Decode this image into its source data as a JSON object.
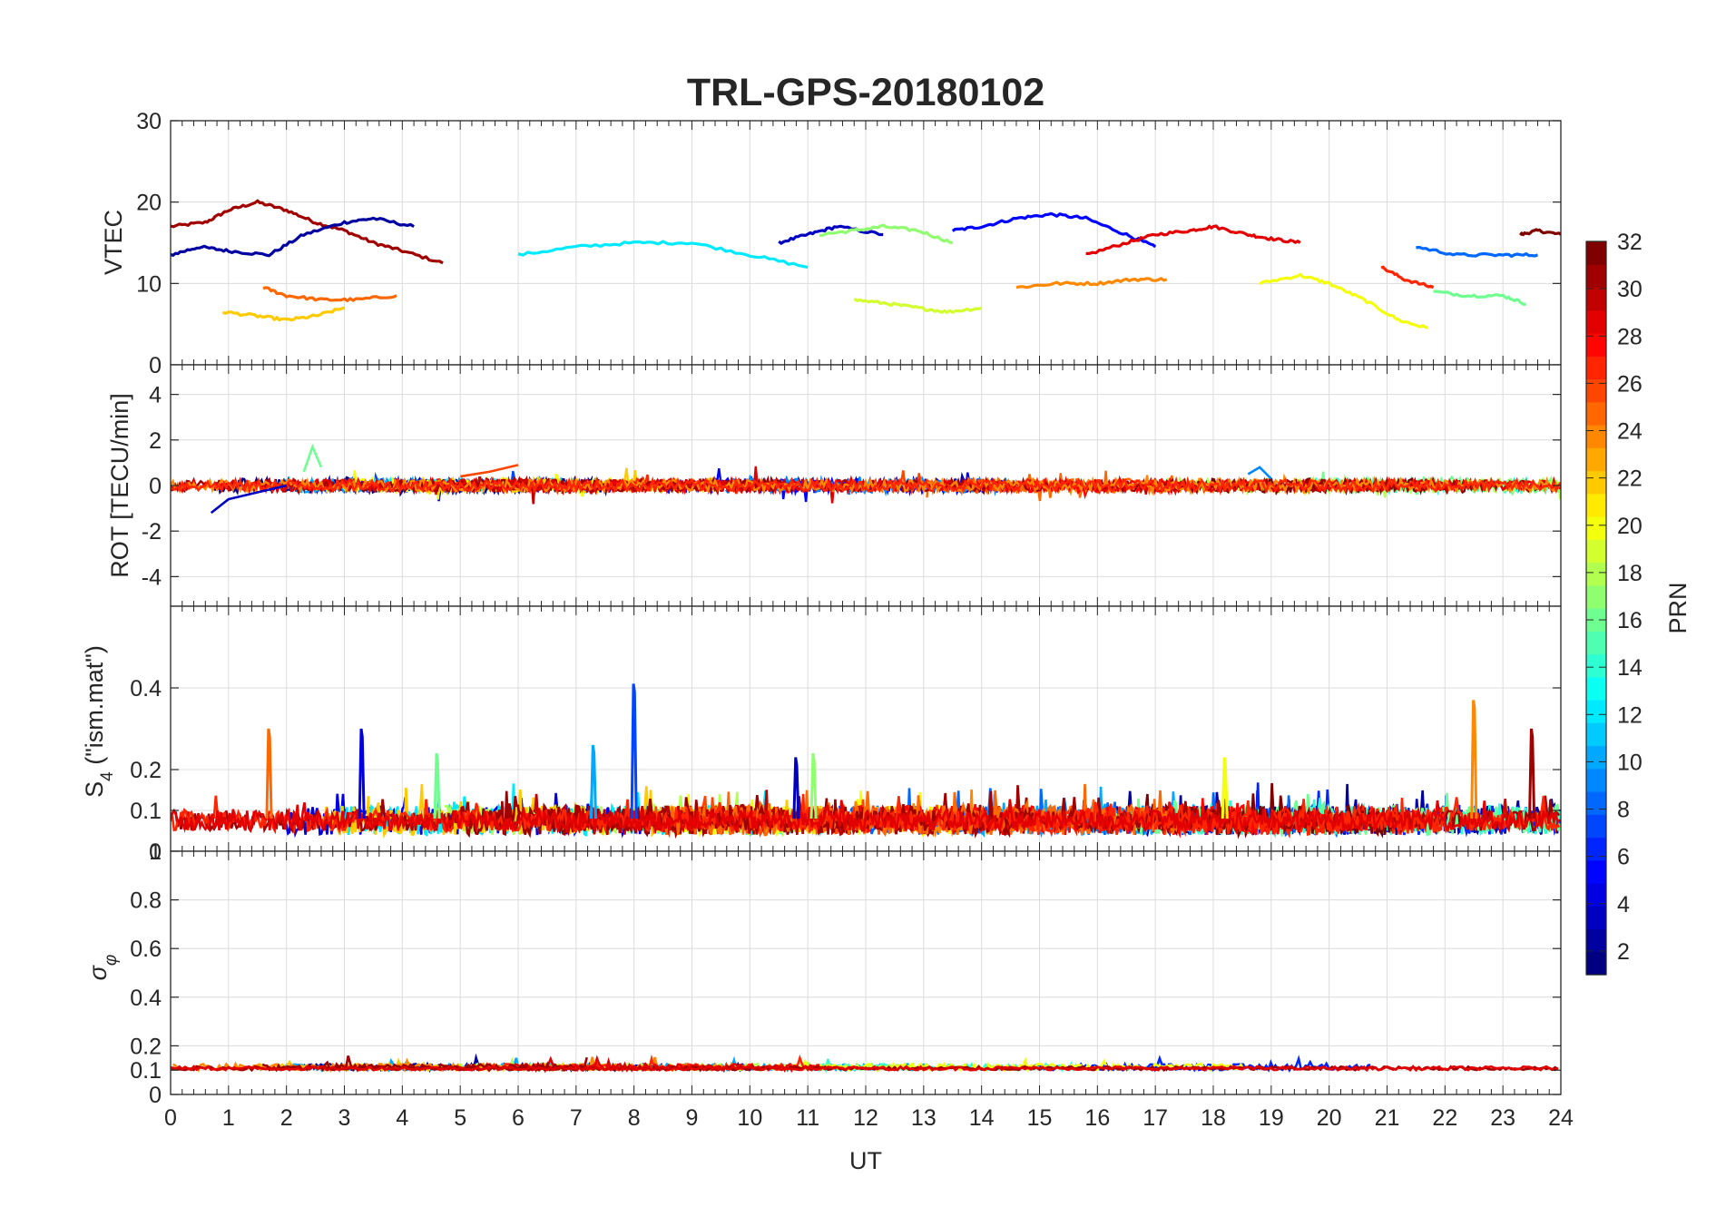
{
  "title": "TRL-GPS-20180102",
  "x_axis": {
    "label": "UT",
    "range": [
      0,
      24
    ],
    "ticks": [
      "0",
      "1",
      "2",
      "3",
      "4",
      "5",
      "6",
      "7",
      "8",
      "9",
      "10",
      "11",
      "12",
      "13",
      "14",
      "15",
      "16",
      "17",
      "18",
      "19",
      "20",
      "21",
      "22",
      "23",
      "24"
    ]
  },
  "panels": [
    {
      "key": "vtec",
      "ylabel": "VTEC",
      "ylim": [
        0,
        30
      ],
      "yticks": [
        {
          "v": 0,
          "t": "0"
        },
        {
          "v": 10,
          "t": "10"
        },
        {
          "v": 20,
          "t": "20"
        },
        {
          "v": 30,
          "t": "30"
        }
      ]
    },
    {
      "key": "rot",
      "ylabel": "ROT [TECU/min]",
      "ylim": [
        -5.3,
        5.3
      ],
      "yticks": [
        {
          "v": -4,
          "t": "-4"
        },
        {
          "v": -2,
          "t": "-2"
        },
        {
          "v": 0,
          "t": "0"
        },
        {
          "v": 2,
          "t": "2"
        },
        {
          "v": 4,
          "t": "4"
        }
      ]
    },
    {
      "key": "s4",
      "ylabel_main": "S",
      "ylabel_sub": "4",
      "ylabel_rest": " (\"ism.mat\")",
      "ylim": [
        0,
        0.6
      ],
      "yticks": [
        {
          "v": 0,
          "t": "0"
        },
        {
          "v": 0.1,
          "t": "0.1"
        },
        {
          "v": 0.2,
          "t": "0.2"
        },
        {
          "v": 0.4,
          "t": "0.4"
        }
      ]
    },
    {
      "key": "sigma",
      "ylabel_main": "σ",
      "ylabel_sub": "φ",
      "ylim": [
        0,
        1
      ],
      "yticks": [
        {
          "v": 0,
          "t": "0"
        },
        {
          "v": 0.1,
          "t": "0.1"
        },
        {
          "v": 0.2,
          "t": "0.2"
        },
        {
          "v": 0.4,
          "t": "0.4"
        },
        {
          "v": 0.6,
          "t": "0.6"
        },
        {
          "v": 0.8,
          "t": "0.8"
        },
        {
          "v": 1,
          "t": "1"
        }
      ]
    }
  ],
  "colorbar": {
    "label": "PRN",
    "range": [
      1,
      32
    ],
    "ticks": [
      "2",
      "4",
      "6",
      "8",
      "10",
      "12",
      "14",
      "16",
      "18",
      "20",
      "22",
      "24",
      "26",
      "28",
      "30",
      "32"
    ],
    "colormap": "jet"
  },
  "chart_data": [
    {
      "type": "line",
      "ylabel": "VTEC",
      "xlabel": "UT",
      "ylim": [
        0,
        30
      ],
      "xlim": [
        0,
        24
      ],
      "series": [
        {
          "prn": 31,
          "x": [
            0.0,
            0.6,
            1.0,
            1.5,
            2.0,
            2.5,
            3.0,
            3.5,
            4.0,
            4.7
          ],
          "y": [
            17,
            17.5,
            19,
            20,
            19,
            17.5,
            16.5,
            15,
            14,
            12.5
          ]
        },
        {
          "prn": 32,
          "x": [
            23.3,
            23.6,
            24.0
          ],
          "y": [
            16,
            16.5,
            16
          ]
        },
        {
          "prn": 2,
          "x": [
            0.0,
            0.5,
            1.0,
            1.7,
            2.3,
            3.0,
            3.5,
            4.2
          ],
          "y": [
            13.5,
            14.5,
            14,
            13.5,
            16,
            17.5,
            18,
            17
          ]
        },
        {
          "prn": 3,
          "x": [
            10.5,
            11.0,
            11.5,
            12.3
          ],
          "y": [
            15,
            16,
            17,
            16
          ]
        },
        {
          "prn": 5,
          "x": [
            13.5,
            14.0,
            14.6,
            15.2,
            15.8,
            16.5,
            17.0
          ],
          "y": [
            16.5,
            17,
            18,
            18.5,
            18,
            16,
            14.5
          ]
        },
        {
          "prn": 29,
          "x": [
            15.8,
            16.5,
            17.0,
            17.6,
            18.0,
            18.6,
            19.0,
            19.5
          ],
          "y": [
            13.5,
            15,
            16,
            16.5,
            17,
            16,
            15.5,
            15
          ]
        },
        {
          "prn": 17,
          "x": [
            11.2,
            11.8,
            12.3,
            12.9,
            13.5
          ],
          "y": [
            16,
            16.5,
            17,
            16.5,
            15
          ]
        },
        {
          "prn": 12,
          "x": [
            6.0,
            7.0,
            8.0,
            9.0,
            10.0,
            11.0
          ],
          "y": [
            13.5,
            14.5,
            15,
            15,
            13.5,
            12
          ]
        },
        {
          "prn": 20,
          "x": [
            18.8,
            19.5,
            20.0,
            20.6,
            21.2,
            21.7
          ],
          "y": [
            10,
            11,
            10,
            8,
            5.5,
            4.5
          ]
        },
        {
          "prn": 22,
          "x": [
            0.9,
            1.5,
            2.0,
            2.5,
            3.0
          ],
          "y": [
            6.5,
            6,
            5.5,
            6,
            7
          ]
        },
        {
          "prn": 25,
          "x": [
            1.6,
            2.0,
            2.6,
            3.2,
            3.9
          ],
          "y": [
            9.5,
            8.5,
            8,
            8,
            8.5
          ]
        },
        {
          "prn": 19,
          "x": [
            11.8,
            12.4,
            12.9,
            13.4,
            14.0
          ],
          "y": [
            8,
            7.5,
            7,
            6.5,
            7
          ]
        },
        {
          "prn": 24,
          "x": [
            14.6,
            15.3,
            16.0,
            16.6,
            17.2
          ],
          "y": [
            9.5,
            10,
            10,
            10.5,
            10.5
          ]
        },
        {
          "prn": 16,
          "x": [
            21.8,
            22.4,
            23.0,
            23.4
          ],
          "y": [
            9,
            8.5,
            8.5,
            7.5
          ]
        },
        {
          "prn": 27,
          "x": [
            20.9,
            21.3,
            21.8
          ],
          "y": [
            12,
            10.5,
            9.5
          ]
        },
        {
          "prn": 8,
          "x": [
            21.5,
            22.2,
            23.0,
            23.6
          ],
          "y": [
            14.5,
            13.5,
            13.5,
            13.5
          ]
        }
      ]
    },
    {
      "type": "line",
      "ylabel": "ROT [TECU/min]",
      "ylim": [
        -5.3,
        5.3
      ],
      "note": "all PRN traces fluctuate around 0 within about ±1 TECU/min",
      "series": [
        {
          "prn": 3,
          "x": [
            0.7,
            1.0,
            1.5,
            2.0
          ],
          "y": [
            -1.2,
            -0.6,
            -0.3,
            0.0
          ]
        },
        {
          "prn": 16,
          "x": [
            2.3,
            2.45,
            2.6
          ],
          "y": [
            0.6,
            1.7,
            0.8
          ]
        },
        {
          "prn": 26,
          "x": [
            5.0,
            5.5,
            6.0
          ],
          "y": [
            0.4,
            0.6,
            0.9
          ]
        },
        {
          "prn": 9,
          "x": [
            18.6,
            18.8,
            19.0
          ],
          "y": [
            0.5,
            0.8,
            0.3
          ]
        }
      ]
    },
    {
      "type": "line",
      "ylabel": "S4 (\"ism.mat\")",
      "ylim": [
        0,
        0.6
      ],
      "baseline_range": [
        0.04,
        0.16
      ],
      "spikes": [
        {
          "x": 1.7,
          "y": 0.3,
          "prn": 25
        },
        {
          "x": 3.3,
          "y": 0.3,
          "prn": 4
        },
        {
          "x": 4.6,
          "y": 0.24,
          "prn": 16
        },
        {
          "x": 7.3,
          "y": 0.26,
          "prn": 10
        },
        {
          "x": 8.0,
          "y": 0.41,
          "prn": 7
        },
        {
          "x": 10.8,
          "y": 0.23,
          "prn": 3
        },
        {
          "x": 11.1,
          "y": 0.24,
          "prn": 17
        },
        {
          "x": 18.2,
          "y": 0.23,
          "prn": 20
        },
        {
          "x": 22.5,
          "y": 0.37,
          "prn": 24
        },
        {
          "x": 23.5,
          "y": 0.3,
          "prn": 31
        }
      ]
    },
    {
      "type": "line",
      "ylabel": "σφ",
      "ylim": [
        0,
        1
      ],
      "baseline_range": [
        0.1,
        0.16
      ],
      "note": "phase scintillation index near 0.1 for all PRNs throughout the day"
    }
  ]
}
